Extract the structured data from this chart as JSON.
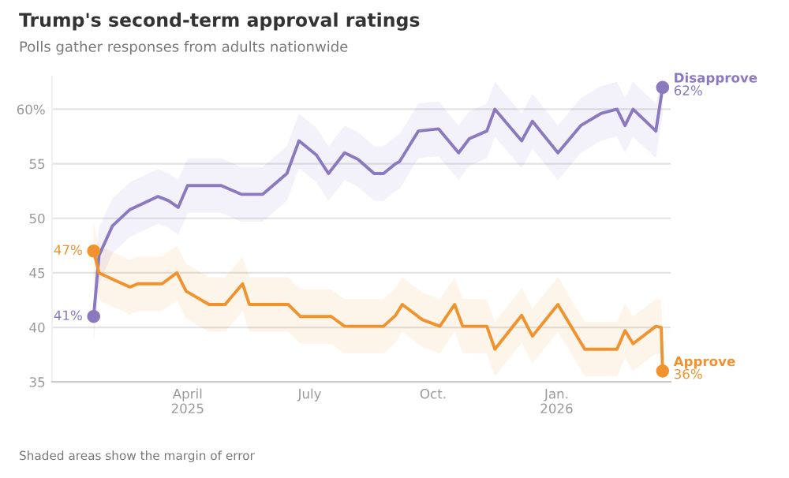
{
  "chart_data": {
    "type": "line",
    "title": "Trump's second-term approval ratings",
    "subtitle": "Polls gather responses from adults nationwide",
    "annotations": [
      "Shaded areas show the margin of error"
    ],
    "x": [
      "2025-01-21",
      "2025-01-25",
      "2025-02-04",
      "2025-02-17",
      "2025-03-10",
      "2025-03-18",
      "2025-03-25",
      "2025-04-01",
      "2025-04-26",
      "2025-05-11",
      "2025-05-27",
      "2025-06-14",
      "2025-06-23",
      "2025-07-06",
      "2025-07-15",
      "2025-07-27",
      "2025-08-06",
      "2025-08-18",
      "2025-08-25",
      "2025-09-03",
      "2025-09-06",
      "2025-09-20",
      "2025-10-05",
      "2025-10-20",
      "2025-10-28",
      "2025-11-10",
      "2025-11-16",
      "2025-12-06",
      "2025-12-14",
      "2026-01-02",
      "2026-01-19",
      "2026-02-03",
      "2026-02-15",
      "2026-02-21",
      "2026-02-27",
      "2026-03-16",
      "2026-03-21"
    ],
    "series": [
      {
        "name": "Disapprove",
        "color": "#8b79c0",
        "values": [
          41,
          46.6,
          49.3,
          50.8,
          52,
          51.6,
          51,
          53,
          53,
          52.2,
          52.2,
          54.1,
          57.1,
          55.8,
          54.1,
          56,
          55.4,
          54.1,
          54.1,
          55,
          55.2,
          58,
          58.2,
          56,
          57.3,
          58,
          60,
          57.1,
          58.9,
          56,
          58.5,
          59.6,
          60,
          58.5,
          60,
          58,
          62
        ],
        "lower": [
          38.5,
          44,
          46.8,
          48.3,
          49.5,
          49.1,
          48.5,
          50.5,
          50.5,
          49.7,
          49.7,
          51.6,
          54.6,
          53.3,
          51.6,
          53.5,
          52.9,
          51.6,
          51.6,
          52.5,
          52.7,
          55.5,
          55.7,
          53.5,
          54.8,
          55.5,
          57.5,
          54.6,
          56.4,
          53.5,
          56,
          57.1,
          57.5,
          56,
          57.5,
          55.5,
          59.5
        ],
        "upper": [
          43.5,
          49.2,
          51.8,
          53.3,
          54.5,
          54.1,
          53.5,
          55.5,
          55.5,
          54.7,
          54.7,
          56.6,
          59.6,
          58.3,
          56.6,
          58.5,
          57.9,
          56.6,
          56.6,
          57.5,
          57.7,
          60.5,
          60.7,
          58.5,
          59.8,
          60.5,
          62.5,
          59.6,
          61.4,
          58.5,
          61,
          62.1,
          62.5,
          61,
          62.5,
          60.5,
          63
        ],
        "value_labels": [
          "41%",
          null,
          null,
          null,
          null,
          null,
          null,
          null,
          null,
          null,
          null,
          null,
          null,
          null,
          null,
          null,
          null,
          null,
          null,
          null,
          null,
          null,
          null,
          null,
          null,
          null,
          null,
          null,
          null,
          null,
          null,
          null,
          null,
          null,
          null,
          null,
          "62%"
        ]
      },
      {
        "name": "Approve",
        "color": "#f0922e",
        "x": [
          "2025-01-21",
          "2025-01-25",
          "2025-02-06",
          "2025-02-17",
          "2025-02-23",
          "2025-03-13",
          "2025-03-24",
          "2025-03-31",
          "2025-04-17",
          "2025-04-29",
          "2025-05-12",
          "2025-05-17",
          "2025-06-15",
          "2025-06-24",
          "2025-07-17",
          "2025-07-27",
          "2025-08-25",
          "2025-09-03",
          "2025-09-08",
          "2025-09-23",
          "2025-10-06",
          "2025-10-17",
          "2025-10-23",
          "2025-11-10",
          "2025-11-16",
          "2025-12-06",
          "2025-12-14",
          "2026-01-02",
          "2026-01-22",
          "2026-02-15",
          "2026-02-21",
          "2026-02-27",
          "2026-03-16",
          "2026-03-20",
          "2026-03-21"
        ],
        "values": [
          47,
          45,
          44.3,
          43.7,
          44,
          44,
          45,
          43.3,
          42.1,
          42.1,
          44,
          42.1,
          42.1,
          41,
          41,
          40.1,
          40.1,
          41.1,
          42.1,
          40.7,
          40.1,
          42.1,
          40.1,
          40.1,
          38,
          41.1,
          39.2,
          42.1,
          38,
          38,
          39.7,
          38.5,
          40.1,
          40,
          36
        ],
        "lower": [
          44.5,
          42.5,
          41.8,
          41.2,
          41.5,
          41.5,
          42.5,
          40.8,
          39.6,
          39.6,
          41.5,
          39.6,
          39.6,
          38.5,
          38.5,
          37.6,
          37.6,
          38.6,
          39.6,
          38.2,
          37.6,
          39.6,
          37.6,
          37.6,
          35.5,
          38.6,
          36.7,
          39.6,
          35.5,
          35.5,
          37.2,
          36,
          37.6,
          37.5,
          35
        ],
        "upper": [
          49.5,
          47.5,
          46.8,
          46.2,
          46.5,
          46.5,
          47.5,
          45.8,
          44.6,
          44.6,
          46.5,
          44.6,
          44.6,
          43.5,
          43.5,
          42.6,
          42.6,
          43.6,
          44.6,
          43.2,
          42.6,
          44.6,
          42.6,
          42.6,
          40.5,
          43.6,
          41.7,
          44.6,
          40.5,
          40.5,
          42.2,
          41,
          42.6,
          42.5,
          38.5
        ],
        "value_labels": [
          "47%",
          null,
          null,
          null,
          null,
          null,
          null,
          null,
          null,
          null,
          null,
          null,
          null,
          null,
          null,
          null,
          null,
          null,
          null,
          null,
          null,
          null,
          null,
          null,
          null,
          null,
          null,
          null,
          null,
          null,
          null,
          null,
          null,
          null,
          "36%"
        ]
      }
    ],
    "xlim": [
      "2024-12-21",
      "2026-03-27"
    ],
    "xticks": [
      {
        "value": "2025-04-01",
        "label": "April\n2025"
      },
      {
        "value": "2025-07-01",
        "label": "July"
      },
      {
        "value": "2025-10-01",
        "label": "Oct."
      },
      {
        "value": "2026-01-01",
        "label": "Jan.\n2026"
      }
    ],
    "ylim": [
      35,
      63
    ],
    "yticks": [
      35,
      40,
      45,
      50,
      55,
      {
        "value": 60,
        "label": "60%"
      }
    ],
    "grid": "y",
    "legend": false
  }
}
